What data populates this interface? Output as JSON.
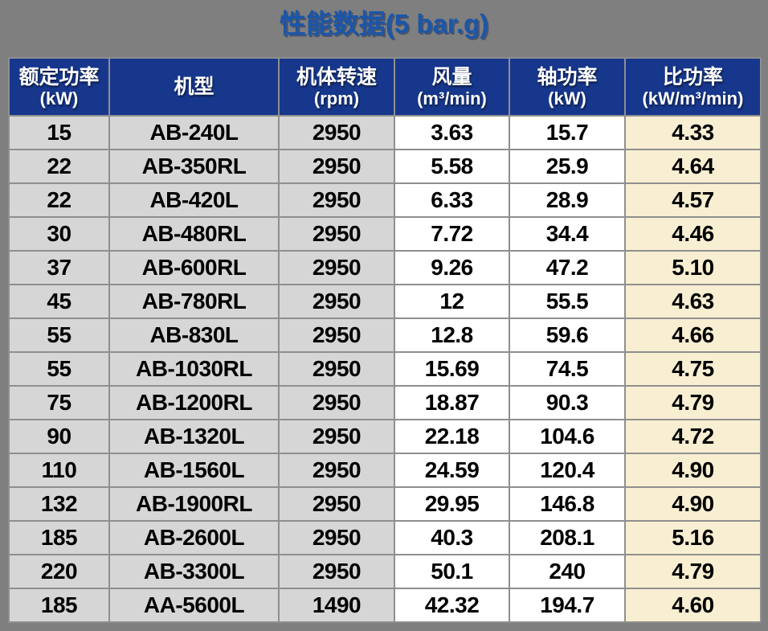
{
  "title": "性能数据(5 bar.g)",
  "colors": {
    "page_background": "#7f7f7f",
    "header_background": "#17378c",
    "title_blue": "#1b56a8",
    "gray_cell": "#d6d6d6",
    "white_cell": "#ffffff",
    "highlight_cell": "#f8eed1",
    "grid_border": "#8f8f8f",
    "data_text": "#000000",
    "header_text": "#ffffff"
  },
  "table": {
    "columns": [
      {
        "title": "额定功率",
        "unit": "(kW)"
      },
      {
        "title": "机型",
        "unit": ""
      },
      {
        "title": "机体转速",
        "unit": "(rpm)"
      },
      {
        "title": "风量",
        "unit": "(m³/min)"
      },
      {
        "title": "轴功率",
        "unit": "(kW)"
      },
      {
        "title": "比功率",
        "unit": "(kW/m³/min)"
      }
    ],
    "rows": [
      [
        "15",
        "AB-240L",
        "2950",
        "3.63",
        "15.7",
        "4.33"
      ],
      [
        "22",
        "AB-350RL",
        "2950",
        "5.58",
        "25.9",
        "4.64"
      ],
      [
        "22",
        "AB-420L",
        "2950",
        "6.33",
        "28.9",
        "4.57"
      ],
      [
        "30",
        "AB-480RL",
        "2950",
        "7.72",
        "34.4",
        "4.46"
      ],
      [
        "37",
        "AB-600RL",
        "2950",
        "9.26",
        "47.2",
        "5.10"
      ],
      [
        "45",
        "AB-780RL",
        "2950",
        "12",
        "55.5",
        "4.63"
      ],
      [
        "55",
        "AB-830L",
        "2950",
        "12.8",
        "59.6",
        "4.66"
      ],
      [
        "55",
        "AB-1030RL",
        "2950",
        "15.69",
        "74.5",
        "4.75"
      ],
      [
        "75",
        "AB-1200RL",
        "2950",
        "18.87",
        "90.3",
        "4.79"
      ],
      [
        "90",
        "AB-1320L",
        "2950",
        "22.18",
        "104.6",
        "4.72"
      ],
      [
        "110",
        "AB-1560L",
        "2950",
        "24.59",
        "120.4",
        "4.90"
      ],
      [
        "132",
        "AB-1900RL",
        "2950",
        "29.95",
        "146.8",
        "4.90"
      ],
      [
        "185",
        "AB-2600L",
        "2950",
        "40.3",
        "208.1",
        "5.16"
      ],
      [
        "220",
        "AB-3300L",
        "2950",
        "50.1",
        "240",
        "4.79"
      ],
      [
        "185",
        "AA-5600L",
        "1490",
        "42.32",
        "194.7",
        "4.60"
      ]
    ]
  }
}
